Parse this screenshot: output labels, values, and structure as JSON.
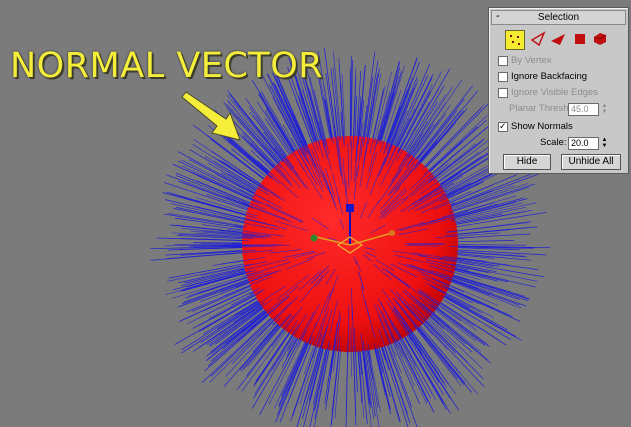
{
  "annotation": {
    "title": "NORMAL VECTOR"
  },
  "colors": {
    "sphere": "#ff1a1a",
    "normals": "#1f1fd6",
    "annotation_text": "#f4ee3a",
    "background": "#7b7b7b"
  },
  "selection_panel": {
    "collapse_symbol": "-",
    "title": "Selection",
    "mode_icons": [
      "vertex-mode-icon",
      "edge-mode-icon",
      "face-mode-icon",
      "polygon-mode-icon",
      "element-mode-icon"
    ],
    "active_mode": "vertex-mode-icon",
    "by_vertex": {
      "label": "By Vertex",
      "checked": false,
      "enabled": false
    },
    "ignore_backfacing": {
      "label": "Ignore Backfacing",
      "checked": false,
      "enabled": true
    },
    "ignore_visible_edges": {
      "label": "Ignore Visible Edges",
      "checked": false,
      "enabled": false
    },
    "planar_thresh": {
      "label": "Planar Thresh:",
      "value": "45.0",
      "enabled": false
    },
    "show_normals": {
      "label": "Show Normals",
      "checked": true,
      "enabled": true
    },
    "scale": {
      "label": "Scale:",
      "value": "20.0"
    },
    "hide_button": "Hide",
    "unhide_all_button": "Unhide All"
  }
}
